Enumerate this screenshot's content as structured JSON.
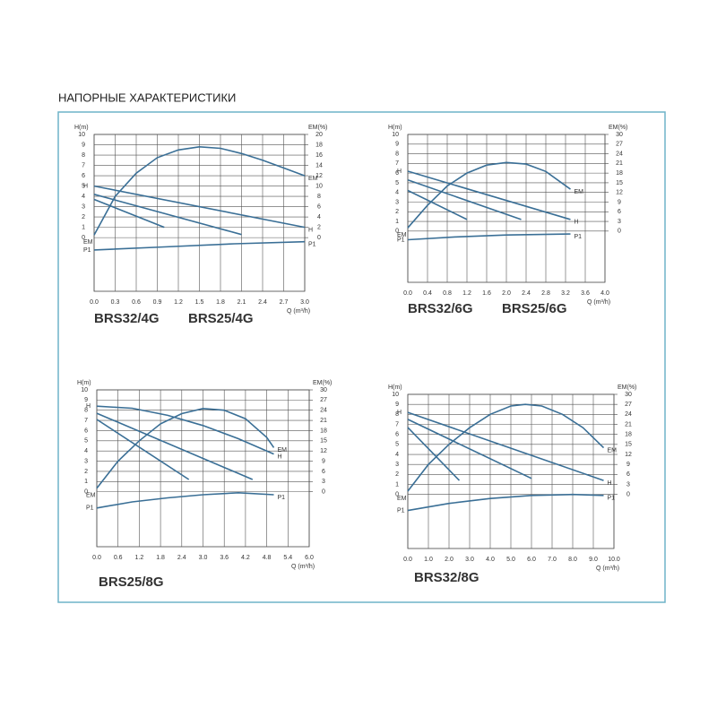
{
  "page_title": "НАПОРНЫЕ ХАРАКТЕРИСТИКИ",
  "chart_data": [
    {
      "type": "line",
      "models": [
        "BRS32/4G",
        "BRS25/4G"
      ],
      "y_label": "H(m)",
      "y2_label": "EM(%)",
      "x_label": "Q (m³/h)",
      "xlim": [
        0,
        3
      ],
      "xticks": [
        {
          "value": 0,
          "label": "0.0"
        },
        0.3,
        0.6,
        0.9,
        1.2,
        1.5,
        1.8,
        2.1,
        2.4,
        2.7,
        {
          "value": 3,
          "label": "3.0"
        }
      ],
      "ylim": [
        -5.2,
        10
      ],
      "yticks": [
        0,
        1,
        2,
        3,
        4,
        5,
        6,
        7,
        8,
        9,
        10
      ],
      "y2lim": [
        -10.4,
        20
      ],
      "y2ticks": [
        0,
        2,
        4,
        6,
        8,
        10,
        12,
        14,
        16,
        18,
        20
      ],
      "grid": true,
      "series": [
        {
          "name": "H",
          "color": "#3a6f96",
          "x": [
            0,
            3
          ],
          "values": [
            5,
            1
          ]
        },
        {
          "color": "#3a6f96",
          "x": [
            0,
            2.1
          ],
          "values": [
            4.2,
            0.3
          ]
        },
        {
          "color": "#3a6f96",
          "x": [
            0,
            1
          ],
          "values": [
            3.7,
            1
          ]
        },
        {
          "name": "EM",
          "color": "#3a6f96",
          "axis": "y2",
          "x": [
            0,
            0.3,
            0.6,
            0.9,
            1.2,
            1.5,
            1.8,
            2.1,
            2.4,
            2.7,
            3
          ],
          "values": [
            0.5,
            8,
            12.5,
            15.5,
            17,
            17.6,
            17.3,
            16.3,
            15,
            13.5,
            12
          ]
        },
        {
          "name": "P1",
          "color": "#3a6f96",
          "x": [
            0,
            1,
            2,
            3
          ],
          "values": [
            -1.2,
            -0.9,
            -0.6,
            -0.4
          ]
        }
      ]
    },
    {
      "type": "line",
      "models": [
        "BRS32/6G",
        "BRS25/6G"
      ],
      "y_label": "H(m)",
      "y2_label": "EM(%)",
      "x_label": "Q (m³/h)",
      "xlim": [
        0,
        4
      ],
      "xticks": [
        {
          "value": 0,
          "label": "0.0"
        },
        0.4,
        0.8,
        1.2,
        1.6,
        {
          "value": 2,
          "label": "2.0"
        },
        2.4,
        2.8,
        3.2,
        3.6,
        {
          "value": 4,
          "label": "4.0"
        }
      ],
      "ylim": [
        -5.3,
        10
      ],
      "yticks": [
        0,
        1,
        2,
        3,
        4,
        5,
        6,
        7,
        8,
        9,
        10
      ],
      "y2lim": [
        -15.9,
        30
      ],
      "y2ticks": [
        0,
        3,
        6,
        9,
        12,
        15,
        18,
        21,
        24,
        27,
        30
      ],
      "grid": true,
      "series": [
        {
          "name": "H",
          "color": "#3a6f96",
          "x": [
            0,
            3.3
          ],
          "values": [
            6.2,
            1.2
          ]
        },
        {
          "color": "#3a6f96",
          "x": [
            0,
            2.3
          ],
          "values": [
            5.3,
            1.2
          ]
        },
        {
          "color": "#3a6f96",
          "x": [
            0,
            1.2
          ],
          "values": [
            4.2,
            1.2
          ]
        },
        {
          "name": "EM",
          "color": "#3a6f96",
          "axis": "y2",
          "x": [
            0,
            0.4,
            0.8,
            1.2,
            1.6,
            2,
            2.4,
            2.8,
            3.3
          ],
          "values": [
            1,
            8,
            14,
            18,
            20.5,
            21.3,
            20.8,
            18.5,
            13
          ]
        },
        {
          "name": "P1",
          "color": "#3a6f96",
          "x": [
            0,
            1,
            2,
            3.3
          ],
          "values": [
            -0.9,
            -0.6,
            -0.4,
            -0.3
          ]
        }
      ]
    },
    {
      "type": "line",
      "models": [
        "BRS25/8G"
      ],
      "y_label": "H(m)",
      "y2_label": "EM(%)",
      "x_label": "Q (m³/h)",
      "xlim": [
        0,
        6
      ],
      "xticks": [
        {
          "value": 0,
          "label": "0.0"
        },
        0.6,
        1.2,
        1.8,
        2.4,
        {
          "value": 3,
          "label": "3.0"
        },
        3.6,
        4.2,
        4.8,
        5.4,
        {
          "value": 6,
          "label": "6.0"
        }
      ],
      "ylim": [
        -5.4,
        10
      ],
      "yticks": [
        0,
        1,
        2,
        3,
        4,
        5,
        6,
        7,
        8,
        9,
        10
      ],
      "y2lim": [
        -16.2,
        30
      ],
      "y2ticks": [
        0,
        3,
        6,
        9,
        12,
        15,
        18,
        21,
        24,
        27,
        30
      ],
      "grid": true,
      "series": [
        {
          "name": "H",
          "color": "#3a6f96",
          "x": [
            0,
            1,
            2,
            3,
            4,
            5
          ],
          "values": [
            8.4,
            8.2,
            7.5,
            6.5,
            5.2,
            3.7
          ]
        },
        {
          "color": "#3a6f96",
          "x": [
            0,
            4.4
          ],
          "values": [
            7.7,
            1.2
          ]
        },
        {
          "color": "#3a6f96",
          "x": [
            0,
            2.6
          ],
          "values": [
            7.1,
            1.2
          ]
        },
        {
          "name": "EM",
          "color": "#3a6f96",
          "axis": "y2",
          "x": [
            0,
            0.6,
            1.2,
            1.8,
            2.4,
            3,
            3.6,
            4.2,
            4.8,
            5
          ],
          "values": [
            1,
            9,
            15,
            20,
            23,
            24.5,
            24,
            21.5,
            16,
            13
          ]
        },
        {
          "name": "P1",
          "color": "#3a6f96",
          "x": [
            0,
            1,
            2,
            3,
            4,
            5
          ],
          "values": [
            -1.6,
            -1,
            -0.6,
            -0.3,
            -0.1,
            -0.3
          ]
        }
      ]
    },
    {
      "type": "line",
      "models": [
        "BRS32/8G"
      ],
      "y_label": "H(m)",
      "y2_label": "EM(%)",
      "x_label": "Q (m³/h)",
      "xlim": [
        0,
        10
      ],
      "xticks": [
        {
          "value": 0,
          "label": "0.0"
        },
        {
          "value": 1,
          "label": "1.0"
        },
        {
          "value": 2,
          "label": "2.0"
        },
        {
          "value": 3,
          "label": "3.0"
        },
        {
          "value": 4,
          "label": "4.0"
        },
        {
          "value": 5,
          "label": "5.0"
        },
        {
          "value": 6,
          "label": "6.0"
        },
        {
          "value": 7,
          "label": "7.0"
        },
        {
          "value": 8,
          "label": "8.0"
        },
        {
          "value": 9,
          "label": "9.0"
        },
        {
          "value": 10,
          "label": "10.0"
        }
      ],
      "ylim": [
        -5.4,
        10
      ],
      "yticks": [
        0,
        1,
        2,
        3,
        4,
        5,
        6,
        7,
        8,
        9,
        10
      ],
      "y2lim": [
        -16.2,
        30
      ],
      "y2ticks": [
        0,
        3,
        6,
        9,
        12,
        15,
        18,
        21,
        24,
        27,
        30
      ],
      "grid": true,
      "series": [
        {
          "name": "H",
          "color": "#3a6f96",
          "x": [
            0,
            9.5
          ],
          "values": [
            8.2,
            1.4
          ]
        },
        {
          "color": "#3a6f96",
          "x": [
            0,
            6
          ],
          "values": [
            7.5,
            1.6
          ]
        },
        {
          "color": "#3a6f96",
          "x": [
            0,
            2.5
          ],
          "values": [
            6.7,
            1.4
          ]
        },
        {
          "name": "EM",
          "color": "#3a6f96",
          "axis": "y2",
          "x": [
            0,
            1,
            2,
            3,
            4,
            5,
            5.7,
            6.5,
            7.5,
            8.5,
            9.5
          ],
          "values": [
            1,
            9,
            15,
            20,
            24,
            26.5,
            27,
            26.5,
            24,
            20,
            14
          ]
        },
        {
          "name": "P1",
          "color": "#3a6f96",
          "x": [
            0,
            2,
            4,
            6,
            8,
            9.5
          ],
          "values": [
            -1.6,
            -0.9,
            -0.4,
            -0.1,
            0,
            -0.1
          ]
        }
      ]
    }
  ]
}
